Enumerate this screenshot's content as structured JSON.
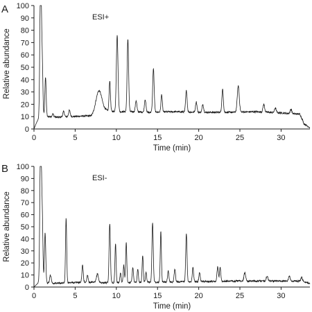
{
  "figure": {
    "background": "#ffffff",
    "line_color": "#1a1a1a"
  },
  "chart_data": [
    {
      "type": "line",
      "panel_letter": "A",
      "annotation": "ESI+",
      "title": "",
      "xlabel": "Time (min)",
      "ylabel": "Relative abundance",
      "xlim": [
        0,
        33.5
      ],
      "ylim": [
        0,
        100
      ],
      "xticks": [
        "0",
        "5",
        "10",
        "15",
        "20",
        "25",
        "30"
      ],
      "xtick_values": [
        0,
        5,
        10,
        15,
        20,
        25,
        30
      ],
      "yticks": [
        "0",
        "10",
        "20",
        "30",
        "40",
        "50",
        "60",
        "70",
        "80",
        "90",
        "100"
      ],
      "ytick_values": [
        0,
        10,
        20,
        30,
        40,
        50,
        60,
        70,
        80,
        90,
        100
      ],
      "grid": false,
      "legend": "none",
      "baseline": [
        [
          0,
          0
        ],
        [
          0.3,
          5
        ],
        [
          0.6,
          9
        ],
        [
          1.8,
          10
        ],
        [
          3,
          9.5
        ],
        [
          4.5,
          10
        ],
        [
          6,
          10.5
        ],
        [
          7,
          10.5
        ],
        [
          7.5,
          13
        ],
        [
          8.6,
          15
        ],
        [
          10,
          14
        ],
        [
          12,
          14
        ],
        [
          14,
          13.5
        ],
        [
          17,
          14
        ],
        [
          20,
          13.5
        ],
        [
          24,
          13.5
        ],
        [
          27,
          14
        ],
        [
          30,
          13
        ],
        [
          32.3,
          12
        ],
        [
          32.8,
          4
        ],
        [
          33.3,
          2
        ],
        [
          33.5,
          1
        ]
      ],
      "peaks": [
        {
          "rt": 0.75,
          "height": 75,
          "width": 0.07
        },
        {
          "rt": 0.85,
          "height": 99,
          "width": 0.07
        },
        {
          "rt": 1.0,
          "height": 55,
          "width": 0.08
        },
        {
          "rt": 1.4,
          "height": 42,
          "width": 0.08
        },
        {
          "rt": 2.3,
          "height": 12,
          "width": 0.1
        },
        {
          "rt": 3.6,
          "height": 14,
          "width": 0.1
        },
        {
          "rt": 4.3,
          "height": 15,
          "width": 0.1
        },
        {
          "rt": 7.9,
          "height": 31,
          "width": 0.35
        },
        {
          "rt": 9.2,
          "height": 39,
          "width": 0.08
        },
        {
          "rt": 10.1,
          "height": 76,
          "width": 0.1
        },
        {
          "rt": 11.4,
          "height": 73,
          "width": 0.09
        },
        {
          "rt": 12.4,
          "height": 23,
          "width": 0.09
        },
        {
          "rt": 13.5,
          "height": 24,
          "width": 0.09
        },
        {
          "rt": 14.5,
          "height": 49,
          "width": 0.09
        },
        {
          "rt": 15.5,
          "height": 28,
          "width": 0.08
        },
        {
          "rt": 18.5,
          "height": 31,
          "width": 0.09
        },
        {
          "rt": 19.7,
          "height": 22,
          "width": 0.09
        },
        {
          "rt": 20.5,
          "height": 20,
          "width": 0.09
        },
        {
          "rt": 22.9,
          "height": 32,
          "width": 0.09
        },
        {
          "rt": 24.8,
          "height": 35,
          "width": 0.12
        },
        {
          "rt": 27.9,
          "height": 20,
          "width": 0.1
        },
        {
          "rt": 29.3,
          "height": 17,
          "width": 0.1
        },
        {
          "rt": 31.2,
          "height": 16,
          "width": 0.1
        }
      ]
    },
    {
      "type": "line",
      "panel_letter": "B",
      "annotation": "ESI-",
      "title": "",
      "xlabel": "Time (min)",
      "ylabel": "Relative abundance",
      "xlim": [
        0,
        33.5
      ],
      "ylim": [
        0,
        100
      ],
      "xticks": [
        "0",
        "5",
        "10",
        "15",
        "20",
        "25",
        "30"
      ],
      "xtick_values": [
        0,
        5,
        10,
        15,
        20,
        25,
        30
      ],
      "yticks": [
        "0",
        "10",
        "20",
        "30",
        "40",
        "50",
        "60",
        "70",
        "80",
        "90",
        "100"
      ],
      "ytick_values": [
        0,
        10,
        20,
        30,
        40,
        50,
        60,
        70,
        80,
        90,
        100
      ],
      "grid": false,
      "legend": "none",
      "baseline": [
        [
          0,
          0
        ],
        [
          0.3,
          2
        ],
        [
          0.6,
          4
        ],
        [
          2,
          3
        ],
        [
          6,
          4
        ],
        [
          9,
          3.5
        ],
        [
          14,
          4
        ],
        [
          20,
          4.5
        ],
        [
          25,
          5
        ],
        [
          30,
          5
        ],
        [
          32,
          5
        ],
        [
          33,
          4
        ],
        [
          33.5,
          3
        ]
      ],
      "peaks": [
        {
          "rt": 0.75,
          "height": 75,
          "width": 0.07
        },
        {
          "rt": 0.85,
          "height": 99,
          "width": 0.07
        },
        {
          "rt": 1.0,
          "height": 60,
          "width": 0.08
        },
        {
          "rt": 1.35,
          "height": 45,
          "width": 0.08
        },
        {
          "rt": 2.0,
          "height": 10,
          "width": 0.1
        },
        {
          "rt": 3.9,
          "height": 57,
          "width": 0.07
        },
        {
          "rt": 5.9,
          "height": 18,
          "width": 0.08
        },
        {
          "rt": 6.5,
          "height": 10,
          "width": 0.08
        },
        {
          "rt": 7.7,
          "height": 11,
          "width": 0.12
        },
        {
          "rt": 9.2,
          "height": 53,
          "width": 0.08
        },
        {
          "rt": 9.9,
          "height": 36,
          "width": 0.07
        },
        {
          "rt": 10.5,
          "height": 12,
          "width": 0.07
        },
        {
          "rt": 11.2,
          "height": 37,
          "width": 0.07
        },
        {
          "rt": 10.9,
          "height": 18,
          "width": 0.07
        },
        {
          "rt": 12.0,
          "height": 16,
          "width": 0.08
        },
        {
          "rt": 12.6,
          "height": 15,
          "width": 0.07
        },
        {
          "rt": 13.2,
          "height": 26,
          "width": 0.07
        },
        {
          "rt": 13.6,
          "height": 12,
          "width": 0.07
        },
        {
          "rt": 14.4,
          "height": 54,
          "width": 0.08
        },
        {
          "rt": 15.4,
          "height": 46,
          "width": 0.07
        },
        {
          "rt": 16.3,
          "height": 13,
          "width": 0.08
        },
        {
          "rt": 17.1,
          "height": 15,
          "width": 0.08
        },
        {
          "rt": 18.5,
          "height": 44,
          "width": 0.08
        },
        {
          "rt": 19.3,
          "height": 16,
          "width": 0.08
        },
        {
          "rt": 20.1,
          "height": 12,
          "width": 0.08
        },
        {
          "rt": 22.3,
          "height": 17,
          "width": 0.08
        },
        {
          "rt": 22.6,
          "height": 16,
          "width": 0.08
        },
        {
          "rt": 25.6,
          "height": 12,
          "width": 0.1
        },
        {
          "rt": 28.3,
          "height": 9,
          "width": 0.1
        },
        {
          "rt": 31.0,
          "height": 9,
          "width": 0.1
        },
        {
          "rt": 32.5,
          "height": 8,
          "width": 0.1
        }
      ]
    }
  ]
}
